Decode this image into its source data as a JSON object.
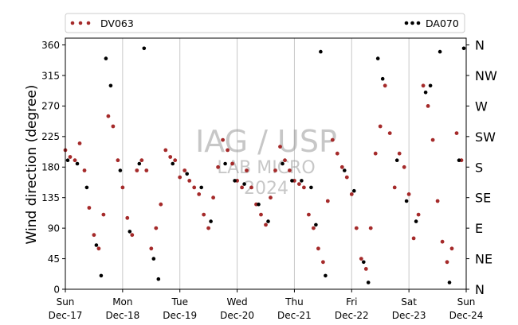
{
  "chart_data": {
    "type": "scatter",
    "ylabel": "Wind direction (degree)",
    "xlabel": "",
    "ylim": [
      0,
      370
    ],
    "xlim": [
      "2017-12-17",
      "2017-12-24"
    ],
    "yticks": [
      0,
      45,
      90,
      135,
      180,
      225,
      270,
      315,
      360
    ],
    "x_tick_labels": [
      {
        "day": "Sun",
        "date": "Dec-17"
      },
      {
        "day": "Mon",
        "date": "Dec-18"
      },
      {
        "day": "Tue",
        "date": "Dec-19"
      },
      {
        "day": "Wed",
        "date": "Dec-20"
      },
      {
        "day": "Thu",
        "date": "Dec-21"
      },
      {
        "day": "Fri",
        "date": "Dec-22"
      },
      {
        "day": "Sat",
        "date": "Dec-23"
      },
      {
        "day": "Sun",
        "date": "Dec-24"
      }
    ],
    "compass_labels": [
      {
        "label": "N",
        "value": 0
      },
      {
        "label": "NE",
        "value": 45
      },
      {
        "label": "E",
        "value": 90
      },
      {
        "label": "SE",
        "value": 135
      },
      {
        "label": "S",
        "value": 180
      },
      {
        "label": "SW",
        "value": 225
      },
      {
        "label": "W",
        "value": 270
      },
      {
        "label": "NW",
        "value": 315
      },
      {
        "label": "N",
        "value": 360
      }
    ],
    "grid": "vertical lines at day boundaries",
    "legend_placement": "top, above plot",
    "series": [
      {
        "name": "DV063",
        "color": "#a52a2a",
        "points": [
          [
            "2017-12-17 00:00",
            205
          ],
          [
            "2017-12-17 02:00",
            195
          ],
          [
            "2017-12-17 04:00",
            190
          ],
          [
            "2017-12-17 06:00",
            215
          ],
          [
            "2017-12-17 08:00",
            175
          ],
          [
            "2017-12-17 10:00",
            120
          ],
          [
            "2017-12-17 12:00",
            80
          ],
          [
            "2017-12-17 14:00",
            60
          ],
          [
            "2017-12-17 16:00",
            110
          ],
          [
            "2017-12-17 18:00",
            255
          ],
          [
            "2017-12-17 20:00",
            240
          ],
          [
            "2017-12-17 22:00",
            190
          ],
          [
            "2017-12-18 00:00",
            150
          ],
          [
            "2017-12-18 02:00",
            105
          ],
          [
            "2017-12-18 04:00",
            80
          ],
          [
            "2017-12-18 06:00",
            175
          ],
          [
            "2017-12-18 08:00",
            190
          ],
          [
            "2017-12-18 10:00",
            175
          ],
          [
            "2017-12-18 12:00",
            60
          ],
          [
            "2017-12-18 14:00",
            90
          ],
          [
            "2017-12-18 16:00",
            125
          ],
          [
            "2017-12-18 18:00",
            205
          ],
          [
            "2017-12-18 20:00",
            195
          ],
          [
            "2017-12-18 22:00",
            190
          ],
          [
            "2017-12-19 00:00",
            165
          ],
          [
            "2017-12-19 02:00",
            175
          ],
          [
            "2017-12-19 04:00",
            160
          ],
          [
            "2017-12-19 06:00",
            150
          ],
          [
            "2017-12-19 08:00",
            140
          ],
          [
            "2017-12-19 10:00",
            110
          ],
          [
            "2017-12-19 12:00",
            90
          ],
          [
            "2017-12-19 14:00",
            135
          ],
          [
            "2017-12-19 16:00",
            180
          ],
          [
            "2017-12-19 18:00",
            220
          ],
          [
            "2017-12-19 20:00",
            205
          ],
          [
            "2017-12-19 22:00",
            185
          ],
          [
            "2017-12-20 00:00",
            160
          ],
          [
            "2017-12-20 02:00",
            150
          ],
          [
            "2017-12-20 04:00",
            175
          ],
          [
            "2017-12-20 06:00",
            150
          ],
          [
            "2017-12-20 08:00",
            125
          ],
          [
            "2017-12-20 10:00",
            110
          ],
          [
            "2017-12-20 12:00",
            95
          ],
          [
            "2017-12-20 14:00",
            135
          ],
          [
            "2017-12-20 16:00",
            175
          ],
          [
            "2017-12-20 18:00",
            210
          ],
          [
            "2017-12-20 20:00",
            190
          ],
          [
            "2017-12-20 22:00",
            175
          ],
          [
            "2017-12-21 00:00",
            160
          ],
          [
            "2017-12-21 02:00",
            155
          ],
          [
            "2017-12-21 04:00",
            150
          ],
          [
            "2017-12-21 06:00",
            110
          ],
          [
            "2017-12-21 08:00",
            90
          ],
          [
            "2017-12-21 10:00",
            60
          ],
          [
            "2017-12-21 12:00",
            40
          ],
          [
            "2017-12-21 14:00",
            130
          ],
          [
            "2017-12-21 16:00",
            220
          ],
          [
            "2017-12-21 18:00",
            200
          ],
          [
            "2017-12-21 20:00",
            180
          ],
          [
            "2017-12-21 22:00",
            165
          ],
          [
            "2017-12-22 00:00",
            140
          ],
          [
            "2017-12-22 02:00",
            90
          ],
          [
            "2017-12-22 04:00",
            45
          ],
          [
            "2017-12-22 06:00",
            30
          ],
          [
            "2017-12-22 08:00",
            90
          ],
          [
            "2017-12-22 10:00",
            200
          ],
          [
            "2017-12-22 12:00",
            240
          ],
          [
            "2017-12-22 14:00",
            300
          ],
          [
            "2017-12-22 16:00",
            230
          ],
          [
            "2017-12-22 18:00",
            150
          ],
          [
            "2017-12-22 20:00",
            200
          ],
          [
            "2017-12-22 22:00",
            180
          ],
          [
            "2017-12-23 00:00",
            140
          ],
          [
            "2017-12-23 02:00",
            75
          ],
          [
            "2017-12-23 04:00",
            110
          ],
          [
            "2017-12-23 06:00",
            300
          ],
          [
            "2017-12-23 08:00",
            270
          ],
          [
            "2017-12-23 10:00",
            220
          ],
          [
            "2017-12-23 12:00",
            130
          ],
          [
            "2017-12-23 14:00",
            70
          ],
          [
            "2017-12-23 16:00",
            40
          ],
          [
            "2017-12-23 18:00",
            60
          ],
          [
            "2017-12-23 20:00",
            230
          ],
          [
            "2017-12-23 22:00",
            190
          ]
        ]
      },
      {
        "name": "DA070",
        "color": "#000000",
        "points": [
          [
            "2017-12-17 01:00",
            190
          ],
          [
            "2017-12-17 05:00",
            185
          ],
          [
            "2017-12-17 09:00",
            150
          ],
          [
            "2017-12-17 13:00",
            65
          ],
          [
            "2017-12-17 15:00",
            20
          ],
          [
            "2017-12-17 17:00",
            340
          ],
          [
            "2017-12-17 19:00",
            300
          ],
          [
            "2017-12-17 23:00",
            175
          ],
          [
            "2017-12-18 03:00",
            85
          ],
          [
            "2017-12-18 07:00",
            185
          ],
          [
            "2017-12-18 09:00",
            355
          ],
          [
            "2017-12-18 13:00",
            45
          ],
          [
            "2017-12-18 15:00",
            15
          ],
          [
            "2017-12-18 21:00",
            185
          ],
          [
            "2017-12-19 03:00",
            170
          ],
          [
            "2017-12-19 09:00",
            150
          ],
          [
            "2017-12-19 13:00",
            100
          ],
          [
            "2017-12-19 19:00",
            185
          ],
          [
            "2017-12-19 23:00",
            160
          ],
          [
            "2017-12-20 03:00",
            155
          ],
          [
            "2017-12-20 09:00",
            125
          ],
          [
            "2017-12-20 13:00",
            100
          ],
          [
            "2017-12-20 19:00",
            185
          ],
          [
            "2017-12-20 23:00",
            160
          ],
          [
            "2017-12-21 03:00",
            160
          ],
          [
            "2017-12-21 07:00",
            150
          ],
          [
            "2017-12-21 09:00",
            95
          ],
          [
            "2017-12-21 11:00",
            350
          ],
          [
            "2017-12-21 13:00",
            20
          ],
          [
            "2017-12-21 21:00",
            175
          ],
          [
            "2017-12-22 01:00",
            145
          ],
          [
            "2017-12-22 05:00",
            40
          ],
          [
            "2017-12-22 07:00",
            10
          ],
          [
            "2017-12-22 11:00",
            340
          ],
          [
            "2017-12-22 13:00",
            310
          ],
          [
            "2017-12-22 19:00",
            190
          ],
          [
            "2017-12-22 23:00",
            130
          ],
          [
            "2017-12-23 03:00",
            100
          ],
          [
            "2017-12-23 07:00",
            290
          ],
          [
            "2017-12-23 09:00",
            300
          ],
          [
            "2017-12-23 13:00",
            350
          ],
          [
            "2017-12-23 17:00",
            10
          ],
          [
            "2017-12-23 21:00",
            190
          ],
          [
            "2017-12-23 23:00",
            355
          ]
        ]
      }
    ]
  },
  "legend": {
    "series1": "DV063",
    "series2": "DA070"
  },
  "watermark": {
    "line1": "IAG / USP",
    "line2": "LAB MICRO",
    "line3": "2024"
  }
}
